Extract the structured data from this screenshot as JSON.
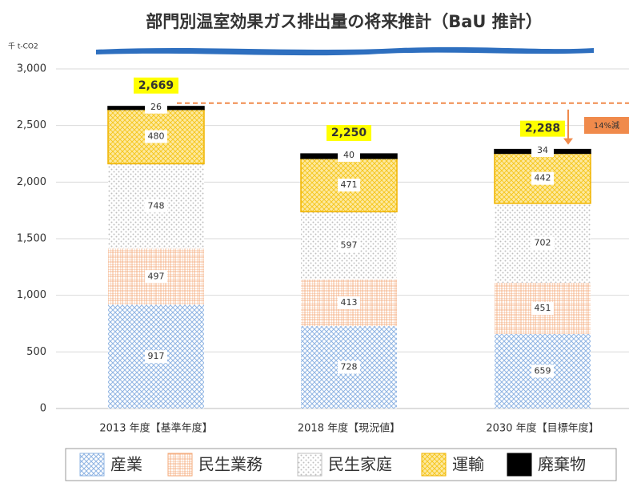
{
  "chart_data": {
    "type": "stacked_bar",
    "title": "部門別温室効果ガス排出量の将来推計（BaU 推計）",
    "y_unit_label": "千 t-CO2",
    "categories": [
      "2013 年度【基準年度】",
      "2018 年度【現況値】",
      "2030 年度【目標年度】"
    ],
    "series": [
      {
        "name": "産業",
        "color": "#8fb4e3",
        "values": [
          917,
          728,
          659
        ]
      },
      {
        "name": "民生業務",
        "color": "#f4a877",
        "values": [
          497,
          413,
          451
        ]
      },
      {
        "name": "民生家庭",
        "color": "#bfbfbf",
        "values": [
          748,
          597,
          702
        ]
      },
      {
        "name": "運輸",
        "color": "#f5c518",
        "values": [
          480,
          471,
          442
        ]
      },
      {
        "name": "廃棄物",
        "color": "#000000",
        "values": [
          26,
          40,
          34
        ]
      }
    ],
    "totals": [
      2669,
      2250,
      2288
    ],
    "total_labels": [
      "2,669",
      "2,250",
      "2,288"
    ],
    "annotation": "14%減",
    "ylim": [
      0,
      3000
    ],
    "yticks": [
      0,
      500,
      {
        "value": 1000,
        "label": "1,000"
      },
      {
        "value": 1500,
        "label": "1,500"
      },
      {
        "value": 2000,
        "label": "2,000"
      },
      {
        "value": 2500,
        "label": "2,500"
      },
      {
        "value": 3000,
        "label": "3,000"
      }
    ],
    "grid": true,
    "legend": "bottom"
  }
}
